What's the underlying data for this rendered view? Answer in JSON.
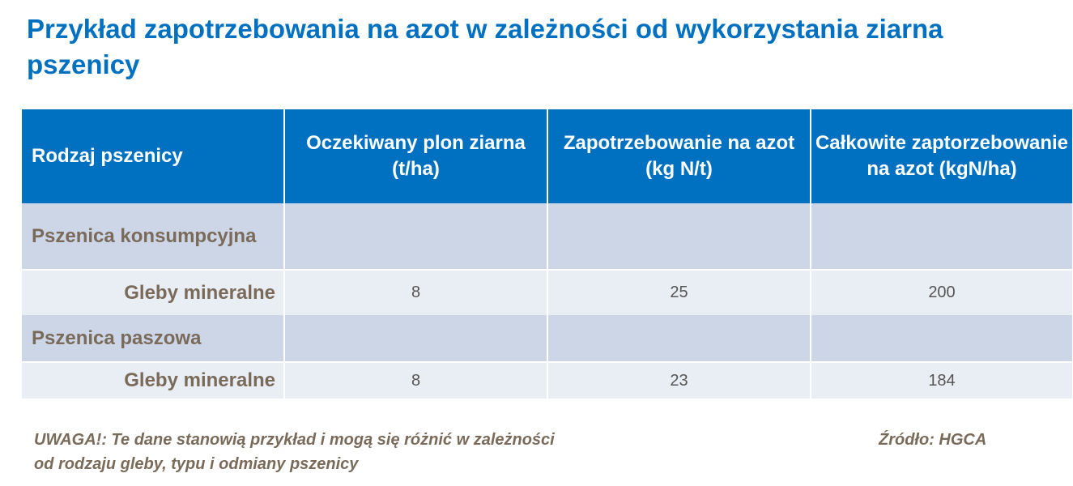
{
  "title": "Przykład zapotrzebowania na azot w zależności od wykorzystania ziarna pszenicy",
  "table": {
    "headers": [
      "Rodzaj pszenicy",
      "Oczekiwany plon ziarna (t/ha)",
      "Zapotrzebowanie na azot  (kg N/t)",
      "Całkowite zaptorzebowanie na azot  (kgN/ha)"
    ],
    "rows": [
      {
        "label": "Pszenica konsumpcyjna",
        "cells": [
          "",
          "",
          ""
        ]
      },
      {
        "label": "Gleby mineralne",
        "cells": [
          "8",
          "25",
          "200"
        ]
      },
      {
        "label": "Pszenica paszowa",
        "cells": [
          "",
          "",
          ""
        ]
      },
      {
        "label": "Gleby mineralne",
        "cells": [
          "8",
          "23",
          "184"
        ]
      }
    ]
  },
  "note": {
    "line1": "UWAGA!: Te dane stanowią przykład i mogą się różnić w zależności",
    "line2": "od rodzaju gleby, typu i odmiany pszenicy"
  },
  "source": "Źródło: HGCA",
  "colors": {
    "header_bg": "#0070c0",
    "title": "#0070c0",
    "category_row_bg": "#cdd6e6",
    "sub_row_bg": "#e9edf4",
    "label_text": "#7a6a5a"
  }
}
